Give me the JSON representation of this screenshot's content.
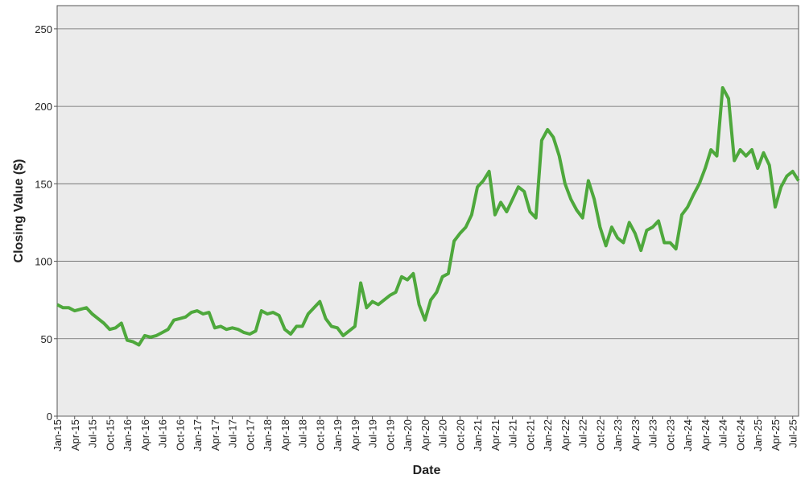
{
  "chart_data": {
    "type": "line",
    "x_label": "Date",
    "y_label": "Closing Value ($)",
    "categories": [
      "Jan-15",
      null,
      null,
      "Apr-15",
      null,
      null,
      "Jul-15",
      null,
      null,
      "Oct-15",
      null,
      null,
      "Jan-16",
      null,
      null,
      "Apr-16",
      null,
      null,
      "Jul-16",
      null,
      null,
      "Oct-16",
      null,
      null,
      "Jan-17",
      null,
      null,
      "Apr-17",
      null,
      null,
      "Jul-17",
      null,
      null,
      "Oct-17",
      null,
      null,
      "Jan-18",
      null,
      null,
      "Apr-18",
      null,
      null,
      "Jul-18",
      null,
      null,
      "Oct-18",
      null,
      null,
      "Jan-19",
      null,
      null,
      "Apr-19",
      null,
      null,
      "Jul-19",
      null,
      null,
      "Oct-19",
      null,
      null,
      "Jan-20",
      null,
      null,
      "Apr-20",
      null,
      null,
      "Jul-20",
      null,
      null,
      "Oct-20",
      null,
      null,
      "Jan-21",
      null,
      null,
      "Apr-21",
      null,
      null,
      "Jul-21",
      null,
      null,
      "Oct-21",
      null,
      null,
      "Jan-22",
      null,
      null,
      "Apr-22",
      null,
      null,
      "Jul-22",
      null,
      null,
      "Oct-22",
      null,
      null,
      "Jan-23",
      null,
      null,
      "Apr-23",
      null,
      null,
      "Jul-23",
      null,
      null,
      "Oct-23",
      null,
      null,
      "Jan-24",
      null,
      null,
      "Apr-24",
      null,
      null,
      "Jul-24",
      null,
      null,
      "Oct-24",
      null,
      null,
      "Jan-25",
      null,
      null,
      "Apr-25",
      null,
      null,
      "Jul-25",
      null
    ],
    "series": [
      {
        "color": "#4ea83c",
        "values": [
          72,
          70,
          70,
          68,
          69,
          70,
          66,
          63,
          60,
          56,
          57,
          60,
          49,
          48,
          46,
          52,
          51,
          52,
          54,
          56,
          62,
          63,
          64,
          67,
          68,
          66,
          67,
          57,
          58,
          56,
          57,
          56,
          54,
          53,
          55,
          68,
          66,
          67,
          65,
          56,
          53,
          58,
          58,
          66,
          70,
          74,
          63,
          58,
          57,
          52,
          55,
          58,
          86,
          70,
          74,
          72,
          75,
          78,
          80,
          90,
          88,
          92,
          72,
          62,
          75,
          80,
          90,
          92,
          113,
          118,
          122,
          130,
          148,
          152,
          158,
          130,
          138,
          132,
          140,
          148,
          145,
          132,
          128,
          178,
          185,
          180,
          168,
          150,
          140,
          133,
          128,
          152,
          140,
          122,
          110,
          122,
          115,
          112,
          125,
          118,
          107,
          120,
          122,
          126,
          112,
          112,
          108,
          130,
          135,
          143,
          150,
          160,
          172,
          168,
          212,
          205,
          165,
          172,
          168,
          172,
          160,
          170,
          162,
          135,
          148,
          155,
          158,
          152
        ]
      }
    ],
    "ylim": [
      0,
      265
    ],
    "yticks": [
      0,
      50,
      100,
      150,
      200,
      250
    ],
    "grid": true
  }
}
